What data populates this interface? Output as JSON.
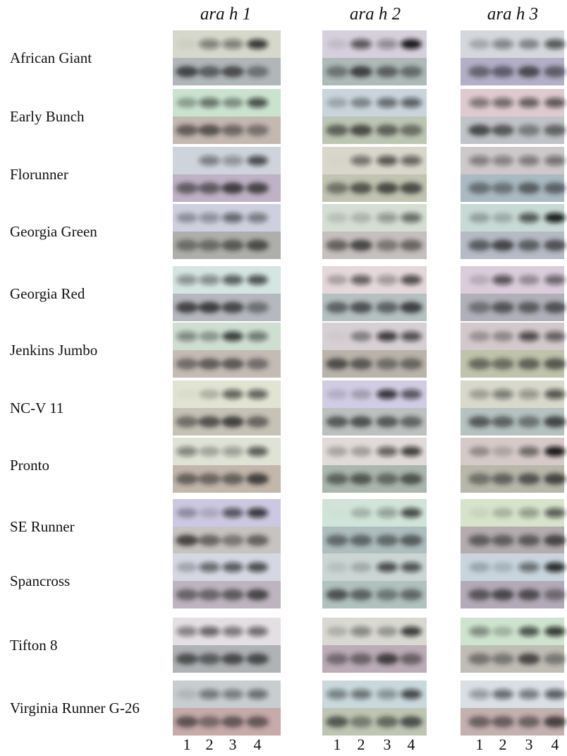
{
  "figure": {
    "column_headers": [
      "ara h 1",
      "ara h 2",
      "ara h 3"
    ],
    "row_labels": [
      "African Giant",
      "Early Bunch",
      "Florunner",
      "Georgia Green",
      "Georgia Red",
      "Jenkins Jumbo",
      "NC-V 11",
      "Pronto",
      "SE Runner",
      "Spancross",
      "Tifton 8",
      "Virginia Runner G-26"
    ],
    "lane_labels": [
      "1",
      "2",
      "3",
      "4"
    ]
  }
}
